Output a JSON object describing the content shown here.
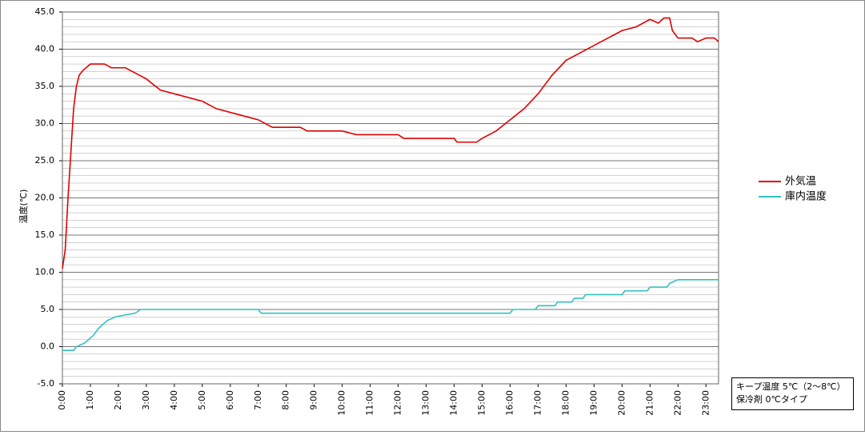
{
  "chart_data": {
    "type": "line",
    "y_label": "温度(℃)",
    "xlim": [
      0,
      23.45
    ],
    "xticks": [
      {
        "value": 0,
        "label": "0:00"
      },
      {
        "value": 1,
        "label": "1:00"
      },
      {
        "value": 2,
        "label": "2:00"
      },
      {
        "value": 3,
        "label": "3:00"
      },
      {
        "value": 4,
        "label": "4:00"
      },
      {
        "value": 5,
        "label": "5:00"
      },
      {
        "value": 6,
        "label": "6:00"
      },
      {
        "value": 7,
        "label": "7:00"
      },
      {
        "value": 8,
        "label": "8:00"
      },
      {
        "value": 9,
        "label": "9:00"
      },
      {
        "value": 10,
        "label": "10:00"
      },
      {
        "value": 11,
        "label": "11:00"
      },
      {
        "value": 12,
        "label": "12:00"
      },
      {
        "value": 13,
        "label": "13:00"
      },
      {
        "value": 14,
        "label": "14:00"
      },
      {
        "value": 15,
        "label": "15:00"
      },
      {
        "value": 16,
        "label": "16:00"
      },
      {
        "value": 17,
        "label": "17:00"
      },
      {
        "value": 18,
        "label": "18:00"
      },
      {
        "value": 19,
        "label": "19:00"
      },
      {
        "value": 20,
        "label": "20:00"
      },
      {
        "value": 21,
        "label": "21:00"
      },
      {
        "value": 22,
        "label": "22:00"
      },
      {
        "value": 23,
        "label": "23:00"
      }
    ],
    "ylim": [
      -5,
      45
    ],
    "yticks": [
      {
        "value": -5,
        "label": "-5.0"
      },
      {
        "value": 0,
        "label": "0.0"
      },
      {
        "value": 5,
        "label": "5.0"
      },
      {
        "value": 10,
        "label": "10.0"
      },
      {
        "value": 15,
        "label": "15.0"
      },
      {
        "value": 20,
        "label": "20.0"
      },
      {
        "value": 25,
        "label": "25.0"
      },
      {
        "value": 30,
        "label": "30.0"
      },
      {
        "value": 35,
        "label": "35.0"
      },
      {
        "value": 40,
        "label": "40.0"
      },
      {
        "value": 45,
        "label": "45.0"
      }
    ],
    "minor_grid_step": 1,
    "grid": true,
    "legend": "right",
    "series": [
      {
        "name": "外気温",
        "color": "#e00000",
        "x": [
          0,
          0.1,
          0.2,
          0.3,
          0.4,
          0.5,
          0.6,
          0.75,
          1.0,
          1.5,
          1.75,
          2.25,
          2.5,
          3.0,
          3.5,
          4,
          4.5,
          5,
          5.5,
          6,
          6.5,
          7,
          7.5,
          8.5,
          8.75,
          10,
          10.5,
          12,
          12.2,
          13,
          14,
          14.1,
          14.8,
          15,
          15.5,
          16,
          16.5,
          17,
          17.5,
          18,
          18.5,
          19,
          19.5,
          20,
          20.5,
          21,
          21.3,
          21.5,
          21.7,
          21.8,
          22,
          22.5,
          22.7,
          23,
          23.3,
          23.45
        ],
        "values": [
          10.5,
          13,
          20,
          26,
          32,
          35,
          36.5,
          37.2,
          38,
          38,
          37.5,
          37.5,
          37,
          36,
          34.5,
          34,
          33.5,
          33,
          32,
          31.5,
          31,
          30.5,
          29.5,
          29.5,
          29,
          29,
          28.5,
          28.5,
          28,
          28,
          28,
          27.5,
          27.5,
          28,
          29,
          30.5,
          32,
          34,
          36.5,
          38.5,
          39.5,
          40.5,
          41.5,
          42.5,
          43,
          44,
          43.5,
          44.2,
          44.2,
          42.5,
          41.5,
          41.5,
          41,
          41.5,
          41.5,
          41
        ]
      },
      {
        "name": "庫内温度",
        "color": "#33c0c0",
        "x": [
          0,
          0.4,
          0.5,
          0.8,
          1.1,
          1.3,
          1.6,
          1.9,
          2.3,
          2.6,
          2.8,
          7.0,
          7.1,
          16.0,
          16.1,
          16.9,
          17,
          17.6,
          17.7,
          18.2,
          18.3,
          18.6,
          18.7,
          20,
          20.1,
          20.9,
          21,
          21.6,
          21.7,
          22,
          23.45
        ],
        "values": [
          -0.5,
          -0.5,
          0,
          0.5,
          1.5,
          2.5,
          3.5,
          4,
          4.3,
          4.5,
          5,
          5,
          4.5,
          4.5,
          5,
          5,
          5.5,
          5.5,
          6,
          6,
          6.5,
          6.5,
          7,
          7,
          7.5,
          7.5,
          8,
          8,
          8.5,
          9,
          9
        ]
      }
    ],
    "note": [
      "キープ温度  5℃（2～8℃）",
      "保冷剤  0℃タイプ"
    ]
  }
}
